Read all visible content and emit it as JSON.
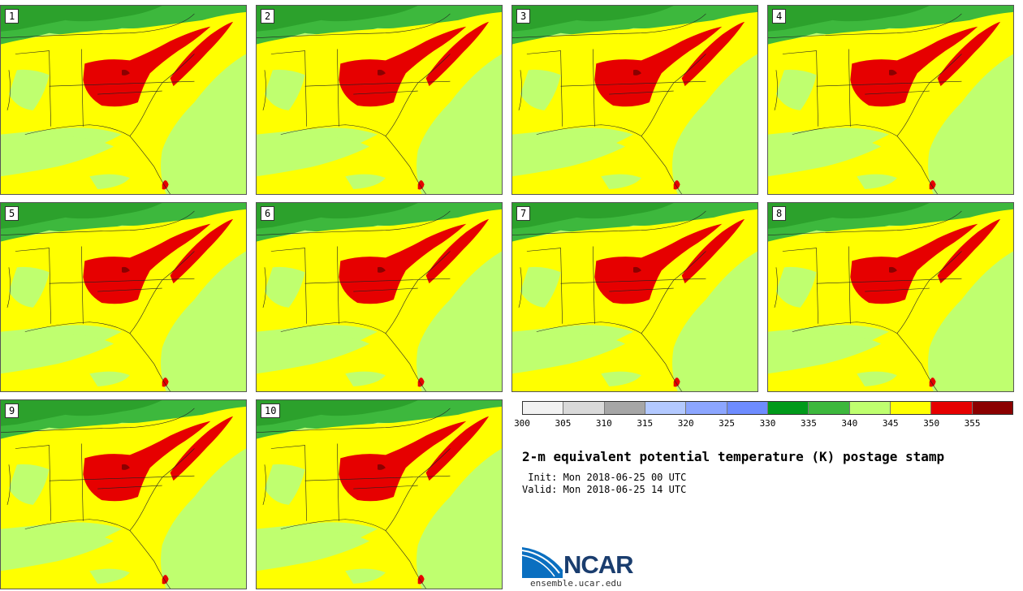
{
  "stamps": [
    {
      "label": "1"
    },
    {
      "label": "2"
    },
    {
      "label": "3"
    },
    {
      "label": "4"
    },
    {
      "label": "5"
    },
    {
      "label": "6"
    },
    {
      "label": "7"
    },
    {
      "label": "8"
    },
    {
      "label": "9"
    },
    {
      "label": "10"
    }
  ],
  "colorbar": {
    "colors": [
      "#f2f2f2",
      "#d9d9d9",
      "#a6a6a6",
      "#b3c9ff",
      "#8ca6ff",
      "#6e8cff",
      "#009a1a",
      "#3db83d",
      "#bfff6f",
      "#ffff00",
      "#e60000",
      "#8b0000"
    ],
    "ticks": [
      "300",
      "305",
      "310",
      "315",
      "320",
      "325",
      "330",
      "335",
      "340",
      "345",
      "350",
      "355"
    ]
  },
  "title": "2-m equivalent potential temperature (K) postage stamp",
  "init": " Init: Mon 2018-06-25 00 UTC",
  "valid": "Valid: Mon 2018-06-25 14 UTC",
  "logo": {
    "text": "NCAR",
    "site": "ensemble.ucar.edu"
  }
}
